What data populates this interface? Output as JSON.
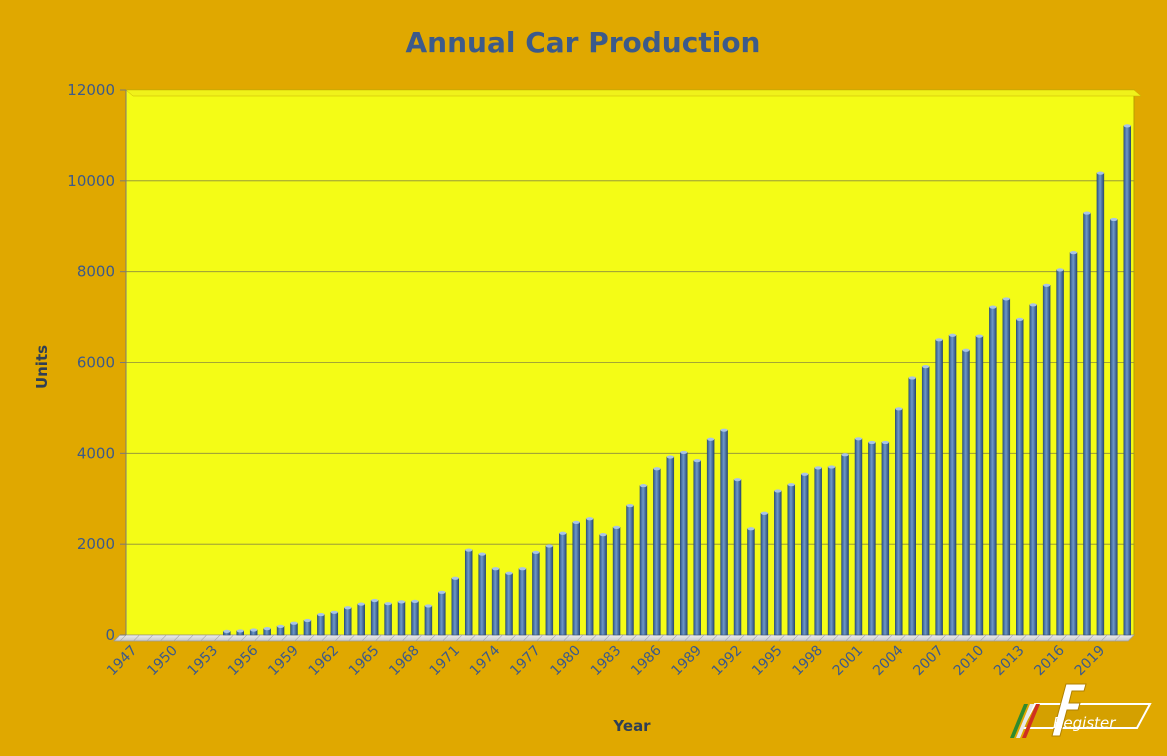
{
  "chart_data": {
    "type": "bar",
    "title": "Annual Car Production",
    "xlabel": "Year",
    "ylabel": "Units",
    "ylim": [
      0,
      12000
    ],
    "yticks": [
      0,
      2000,
      4000,
      6000,
      8000,
      10000,
      12000
    ],
    "grid": true,
    "legend": "none",
    "x_tick_labels": [
      "1947",
      "1950",
      "1953",
      "1956",
      "1959",
      "1962",
      "1965",
      "1968",
      "1971",
      "1974",
      "1977",
      "1980",
      "1983",
      "1986",
      "1989",
      "1992",
      "1995",
      "1998",
      "2001",
      "2004",
      "2007",
      "2010",
      "2013",
      "2016",
      "2019"
    ],
    "categories": [
      1947,
      1948,
      1949,
      1950,
      1951,
      1952,
      1953,
      1954,
      1955,
      1956,
      1957,
      1958,
      1959,
      1960,
      1961,
      1962,
      1963,
      1964,
      1965,
      1966,
      1967,
      1968,
      1969,
      1970,
      1971,
      1972,
      1973,
      1974,
      1975,
      1976,
      1977,
      1978,
      1979,
      1980,
      1981,
      1982,
      1983,
      1984,
      1985,
      1986,
      1987,
      1988,
      1989,
      1990,
      1991,
      1992,
      1993,
      1994,
      1995,
      1996,
      1997,
      1998,
      1999,
      2000,
      2001,
      2002,
      2003,
      2004,
      2005,
      2006,
      2007,
      2008,
      2009,
      2010,
      2011,
      2012,
      2013,
      2014,
      2015,
      2016,
      2017,
      2018,
      2019,
      2020,
      2021
    ],
    "values": [
      0,
      0,
      0,
      0,
      0,
      0,
      0,
      80,
      90,
      110,
      140,
      190,
      260,
      320,
      450,
      500,
      600,
      680,
      760,
      690,
      730,
      740,
      640,
      940,
      1250,
      1870,
      1780,
      1460,
      1360,
      1460,
      1820,
      1960,
      2240,
      2480,
      2560,
      2210,
      2370,
      2850,
      3290,
      3660,
      3920,
      4020,
      3840,
      4310,
      4510,
      3420,
      2340,
      2680,
      3170,
      3310,
      3540,
      3680,
      3700,
      3970,
      4320,
      4240,
      4240,
      4980,
      5660,
      5910,
      6500,
      6600,
      6270,
      6580,
      7220,
      7400,
      6950,
      7270,
      7700,
      8040,
      8420,
      9290,
      10170,
      9150,
      11210
    ],
    "colors": {
      "background": "#e0a800",
      "plot": "#f4fc16",
      "bar": "#4f81bd",
      "text": "#3c5a8a"
    }
  },
  "logo": {
    "text": "Register"
  }
}
